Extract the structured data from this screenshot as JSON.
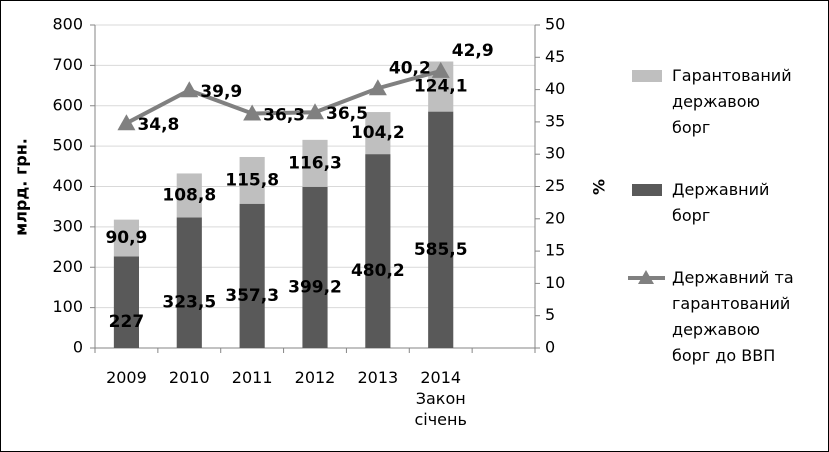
{
  "chart_data": {
    "type": "bar",
    "categories": [
      "2009",
      "2010",
      "2011",
      "2012",
      "2013",
      "2014 Закон січень",
      null
    ],
    "y_label": "млрд. грн.",
    "y2_label": "%",
    "ylim": [
      0,
      800
    ],
    "yticks": [
      0,
      100,
      200,
      300,
      400,
      500,
      600,
      700,
      800
    ],
    "y2lim": [
      0,
      50
    ],
    "y2ticks": [
      0,
      5,
      10,
      15,
      20,
      25,
      30,
      35,
      40,
      45,
      50
    ],
    "grid": true,
    "legend": "right",
    "series": [
      {
        "name": "Гарантований державою борг",
        "color": "#bfbfbf",
        "stack": true,
        "values": [
          90.9,
          108.8,
          115.8,
          116.3,
          104.2,
          124.1,
          null
        ],
        "value_labels": [
          "90,9",
          "108,8",
          "115,8",
          "116,3",
          "104,2",
          "124,1",
          null
        ]
      },
      {
        "name": "Державний борг",
        "color": "#595959",
        "stack": true,
        "values": [
          227,
          323.5,
          357.3,
          399.2,
          480.2,
          585.5,
          null
        ],
        "value_labels": [
          "227",
          "323,5",
          "357,3",
          "399,2",
          "480,2",
          "585,5",
          null
        ]
      },
      {
        "name": "Державний та гарантований державою борг до ВВП",
        "color": "#808080",
        "type": "line",
        "axis": "y2",
        "values": [
          34.8,
          39.9,
          36.3,
          36.5,
          40.2,
          42.9,
          null
        ],
        "value_labels": [
          "34,8",
          "39,9",
          "36,3",
          "36,5",
          "40,2",
          "42,9",
          null
        ]
      }
    ]
  }
}
